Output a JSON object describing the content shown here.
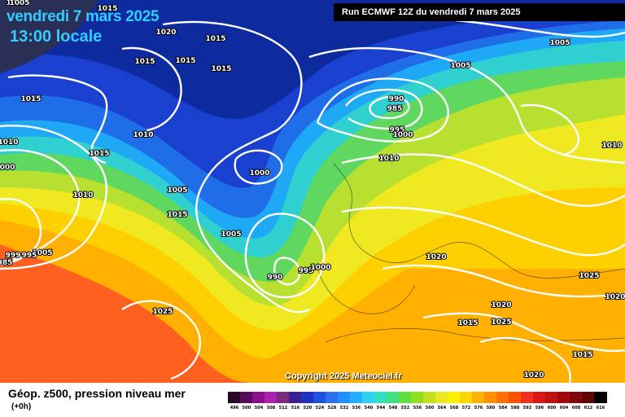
{
  "header": {
    "date": "vendredi 7 mars 2025",
    "time": "13:00 locale",
    "run": "Run ECMWF 12Z du vendredi 7 mars 2025"
  },
  "map": {
    "copyright": "Copyright 2025 Meteociel.fr",
    "isobar_labels": [
      "1015",
      "1020",
      "1015",
      "1015",
      "1015",
      "1015",
      "1015",
      "1015",
      "1005",
      "1005",
      "990",
      "985",
      "995",
      "1000",
      "1010",
      "1010",
      "1010",
      "1000",
      "1000",
      "1005",
      "1010",
      "1015",
      "1005",
      "1005",
      "999",
      "995",
      "985",
      "990",
      "995",
      "1000",
      "1010",
      "1020",
      "1025",
      "1025",
      "1020",
      "1020",
      "1015",
      "1015",
      "1020",
      "1025",
      "1010",
      "1005"
    ]
  },
  "colors": {
    "ocean_deep": "#0d2a9e",
    "land_dark": "#2a2f55",
    "isobar": "#ffffff"
  },
  "legend": {
    "title": "Géop. z500, pression niveau mer",
    "subtitle": "(+0h)",
    "values": [
      "496",
      "500",
      "504",
      "508",
      "512",
      "516",
      "520",
      "524",
      "528",
      "532",
      "536",
      "540",
      "544",
      "548",
      "552",
      "556",
      "560",
      "564",
      "568",
      "572",
      "576",
      "580",
      "584",
      "588",
      "592",
      "596",
      "600",
      "604",
      "608",
      "612",
      "616"
    ],
    "colors": [
      "#2a0a2a",
      "#5a0a5a",
      "#8a108a",
      "#b020b0",
      "#7a2a7a",
      "#3a2090",
      "#2030c0",
      "#2050e0",
      "#2a70f0",
      "#1e90ff",
      "#20b0ff",
      "#30d0f0",
      "#30e0c0",
      "#40e080",
      "#60e040",
      "#90e020",
      "#c0e020",
      "#e8e820",
      "#fff000",
      "#ffd800",
      "#ffb000",
      "#ff9000",
      "#ff7000",
      "#ff5000",
      "#f03020",
      "#d81818",
      "#c01010",
      "#a00a0a",
      "#800808",
      "#600404",
      "#000000"
    ]
  }
}
